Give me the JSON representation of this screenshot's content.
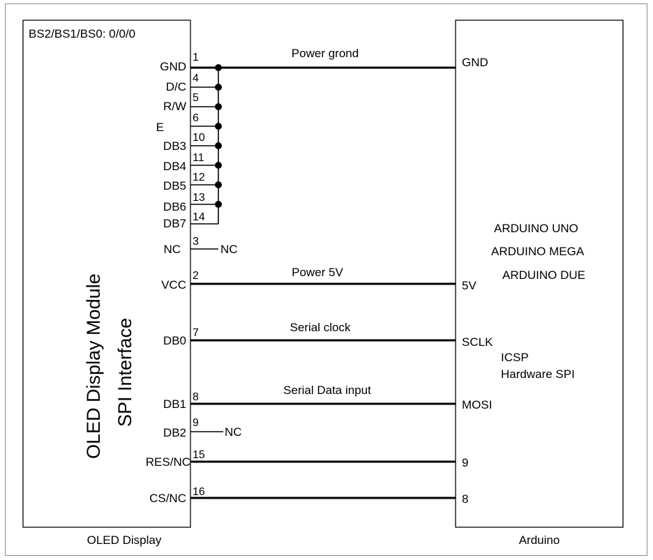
{
  "oled": {
    "mode": "BS2/BS1/BS0: 0/0/0",
    "title": "OLED Display Module",
    "subtitle": "SPI Interface",
    "caption": "OLED Display",
    "pins": [
      {
        "label": "GND",
        "num": "1"
      },
      {
        "label": "D/C",
        "num": "4"
      },
      {
        "label": "R/W",
        "num": "5"
      },
      {
        "label": "E",
        "num": "6"
      },
      {
        "label": "DB3",
        "num": "10"
      },
      {
        "label": "DB4",
        "num": "11"
      },
      {
        "label": "DB5",
        "num": "12"
      },
      {
        "label": "DB6",
        "num": "13"
      },
      {
        "label": "DB7",
        "num": "14"
      },
      {
        "label": "NC",
        "num": "3"
      },
      {
        "label": "VCC",
        "num": "2"
      },
      {
        "label": "DB0",
        "num": "7"
      },
      {
        "label": "DB1",
        "num": "8"
      },
      {
        "label": "DB2",
        "num": "9"
      },
      {
        "label": "RES/NC",
        "num": "15"
      },
      {
        "label": "CS/NC",
        "num": "16"
      }
    ]
  },
  "nc_label": "NC",
  "signals": {
    "gnd": "Power grond",
    "vcc": "Power 5V",
    "clk": "Serial clock",
    "data": "Serial Data input"
  },
  "arduino": {
    "caption": "Arduino",
    "boards": [
      "ARDUINO UNO",
      "ARDUINO MEGA",
      "ARDUINO DUE"
    ],
    "pins": [
      "GND",
      "5V",
      "SCLK",
      "MOSI",
      "9",
      "8"
    ],
    "icsp": "ICSP",
    "hwspi": "Hardware  SPI"
  }
}
